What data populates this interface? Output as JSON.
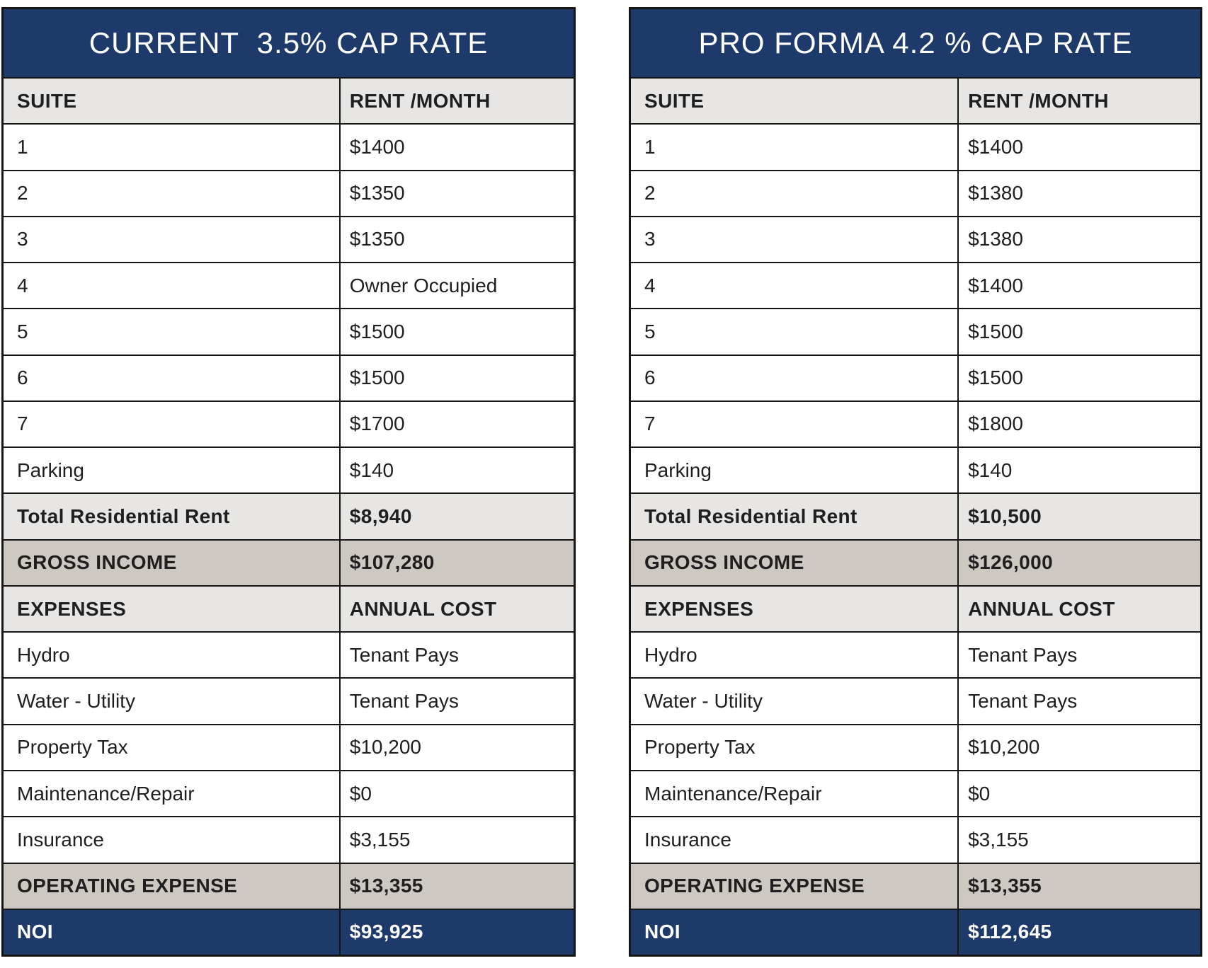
{
  "colors": {
    "navy": "#1e3a6b",
    "light_gray": "#e7e6e4",
    "taupe": "#cdc8c1",
    "border": "#161614",
    "text": "#1f1f1f",
    "title_text": "#ffffff"
  },
  "tables": {
    "left": {
      "title": "CURRENT  3.5% CAP RATE",
      "header": {
        "col1": "SUITE",
        "col2": "RENT /MONTH"
      },
      "suites": [
        {
          "label": "1",
          "value": "$1400"
        },
        {
          "label": "2",
          "value": "$1350"
        },
        {
          "label": "3",
          "value": "$1350"
        },
        {
          "label": "4",
          "value": "Owner Occupied"
        },
        {
          "label": "5",
          "value": "$1500"
        },
        {
          "label": "6",
          "value": "$1500"
        },
        {
          "label": "7",
          "value": "$1700"
        },
        {
          "label": "Parking",
          "value": "$140"
        }
      ],
      "total": {
        "label": "Total Residential Rent",
        "value": "$8,940"
      },
      "gross": {
        "label": "GROSS INCOME",
        "value": "$107,280"
      },
      "expenses_header": {
        "col1": "EXPENSES",
        "col2": "ANNUAL COST"
      },
      "expenses": [
        {
          "label": "Hydro",
          "value": "Tenant Pays"
        },
        {
          "label": "Water - Utility",
          "value": "Tenant Pays"
        },
        {
          "label": "Property Tax",
          "value": "$10,200"
        },
        {
          "label": "Maintenance/Repair",
          "value": "$0"
        },
        {
          "label": "Insurance",
          "value": "$3,155"
        }
      ],
      "operating": {
        "label": "OPERATING EXPENSE",
        "value": "$13,355"
      },
      "noi": {
        "label": "NOI",
        "value": "$93,925"
      }
    },
    "right": {
      "title": "PRO FORMA 4.2 % CAP RATE",
      "header": {
        "col1": "SUITE",
        "col2": "RENT /MONTH"
      },
      "suites": [
        {
          "label": "1",
          "value": "$1400"
        },
        {
          "label": "2",
          "value": "$1380"
        },
        {
          "label": "3",
          "value": "$1380"
        },
        {
          "label": "4",
          "value": "$1400"
        },
        {
          "label": "5",
          "value": "$1500"
        },
        {
          "label": "6",
          "value": "$1500"
        },
        {
          "label": "7",
          "value": "$1800"
        },
        {
          "label": "Parking",
          "value": "$140"
        }
      ],
      "total": {
        "label": "Total Residential Rent",
        "value": "$10,500"
      },
      "gross": {
        "label": "GROSS INCOME",
        "value": "$126,000"
      },
      "expenses_header": {
        "col1": "EXPENSES",
        "col2": "ANNUAL COST"
      },
      "expenses": [
        {
          "label": "Hydro",
          "value": "Tenant Pays"
        },
        {
          "label": "Water - Utility",
          "value": "Tenant Pays"
        },
        {
          "label": "Property Tax",
          "value": "$10,200"
        },
        {
          "label": "Maintenance/Repair",
          "value": "$0"
        },
        {
          "label": "Insurance",
          "value": "$3,155"
        }
      ],
      "operating": {
        "label": "OPERATING EXPENSE",
        "value": "$13,355"
      },
      "noi": {
        "label": "NOI",
        "value": "$112,645"
      }
    }
  }
}
